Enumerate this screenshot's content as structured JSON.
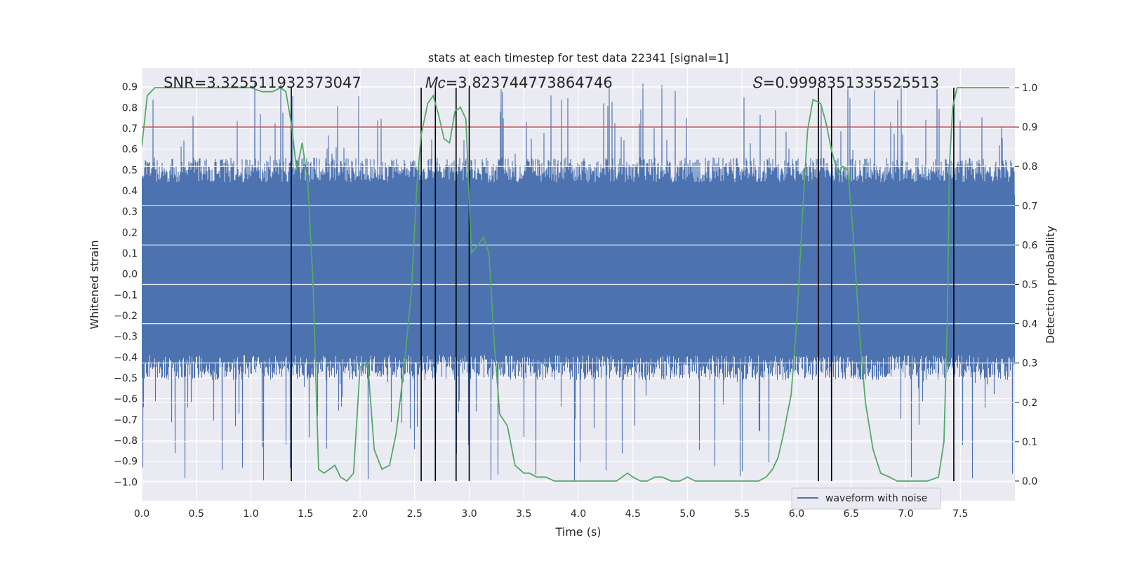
{
  "chart_data": {
    "type": "line",
    "title": "stats at each timestep for test data 22341 [signal=1]",
    "xlabel": "Time (s)",
    "ylabel_left": "Whitened strain",
    "ylabel_right": "Detection probability",
    "xlim": [
      0.0,
      8.0
    ],
    "ylim_left": [
      -1.09,
      0.99
    ],
    "ylim_right": [
      -0.05,
      1.05
    ],
    "xticks": [
      0.0,
      0.5,
      1.0,
      1.5,
      2.0,
      2.5,
      3.0,
      3.5,
      4.0,
      4.5,
      5.0,
      5.5,
      6.0,
      6.5,
      7.0,
      7.5
    ],
    "xtick_labels": [
      "0.0",
      "0.5",
      "1.0",
      "1.5",
      "2.0",
      "2.5",
      "3.0",
      "3.5",
      "4.0",
      "4.5",
      "5.0",
      "5.5",
      "6.0",
      "6.5",
      "7.0",
      "7.5"
    ],
    "yticks_left": [
      0.9,
      0.8,
      0.7,
      0.6,
      0.5,
      0.4,
      0.3,
      0.2,
      0.1,
      0.0,
      -0.1,
      -0.2,
      -0.3,
      -0.4,
      -0.5,
      -0.6,
      -0.7,
      -0.8,
      -0.9,
      -1.0
    ],
    "ytick_labels_left": [
      "0.9",
      "0.8",
      "0.7",
      "0.6",
      "0.5",
      "0.4",
      "0.3",
      "0.2",
      "0.1",
      "0.0",
      "−0.1",
      "−0.2",
      "−0.3",
      "−0.4",
      "−0.5",
      "−0.6",
      "−0.7",
      "−0.8",
      "−0.9",
      "−1.0"
    ],
    "yticks_right": [
      1.0,
      0.9,
      0.8,
      0.7,
      0.6,
      0.5,
      0.4,
      0.3,
      0.2,
      0.1,
      0.0
    ],
    "ytick_labels_right": [
      "1.0",
      "0.9",
      "0.8",
      "0.7",
      "0.6",
      "0.5",
      "0.4",
      "0.3",
      "0.2",
      "0.1",
      "0.0"
    ],
    "grid": true,
    "series": [
      {
        "name": "waveform with noise",
        "axis": "left",
        "kind": "noise",
        "color": "#4c72b0",
        "core_envelope": [
          -0.45,
          0.5
        ],
        "spike_range": [
          -1.0,
          0.92
        ]
      },
      {
        "name": "detection probability",
        "axis": "right",
        "color": "#55a868",
        "x": [
          0.0,
          0.05,
          0.12,
          0.2,
          0.3,
          0.5,
          0.7,
          0.9,
          1.0,
          1.1,
          1.2,
          1.27,
          1.32,
          1.37,
          1.42,
          1.47,
          1.52,
          1.57,
          1.62,
          1.67,
          1.72,
          1.77,
          1.82,
          1.88,
          1.94,
          2.0,
          2.07,
          2.13,
          2.2,
          2.27,
          2.33,
          2.4,
          2.47,
          2.52,
          2.56,
          2.62,
          2.67,
          2.72,
          2.77,
          2.82,
          2.87,
          2.92,
          2.97,
          3.02,
          3.08,
          3.13,
          3.18,
          3.23,
          3.28,
          3.35,
          3.42,
          3.5,
          3.55,
          3.62,
          3.7,
          3.78,
          3.87,
          3.95,
          4.05,
          4.2,
          4.35,
          4.45,
          4.5,
          4.57,
          4.63,
          4.7,
          4.77,
          4.85,
          4.93,
          5.0,
          5.07,
          5.15,
          5.25,
          5.35,
          5.45,
          5.55,
          5.65,
          5.72,
          5.78,
          5.83,
          5.88,
          5.95,
          6.0,
          6.05,
          6.1,
          6.15,
          6.22,
          6.27,
          6.32,
          6.38,
          6.42,
          6.47,
          6.52,
          6.57,
          6.63,
          6.7,
          6.77,
          6.85,
          6.92,
          7.0,
          7.1,
          7.2,
          7.3,
          7.35,
          7.38,
          7.4,
          7.43,
          7.47,
          7.5,
          7.57,
          7.65,
          7.75,
          7.85,
          7.95
        ],
        "values": [
          0.85,
          0.98,
          1.0,
          1.0,
          1.0,
          1.0,
          1.0,
          1.0,
          1.0,
          0.99,
          0.99,
          1.0,
          0.99,
          0.91,
          0.79,
          0.86,
          0.76,
          0.5,
          0.03,
          0.02,
          0.03,
          0.04,
          0.01,
          0.0,
          0.02,
          0.29,
          0.3,
          0.08,
          0.03,
          0.04,
          0.12,
          0.28,
          0.48,
          0.75,
          0.88,
          0.96,
          0.98,
          0.93,
          0.87,
          0.86,
          0.94,
          0.95,
          0.92,
          0.58,
          0.6,
          0.62,
          0.58,
          0.35,
          0.17,
          0.14,
          0.04,
          0.02,
          0.02,
          0.01,
          0.01,
          0.0,
          0.0,
          0.0,
          0.0,
          0.0,
          0.0,
          0.02,
          0.01,
          0.0,
          0.0,
          0.01,
          0.01,
          0.0,
          0.0,
          0.01,
          0.0,
          0.0,
          0.0,
          0.0,
          0.0,
          0.0,
          0.0,
          0.01,
          0.03,
          0.06,
          0.12,
          0.22,
          0.4,
          0.66,
          0.89,
          0.97,
          0.96,
          0.91,
          0.84,
          0.78,
          0.8,
          0.79,
          0.62,
          0.4,
          0.2,
          0.08,
          0.02,
          0.01,
          0.0,
          0.0,
          0.0,
          0.0,
          0.01,
          0.1,
          0.4,
          0.8,
          0.95,
          1.0,
          1.0,
          1.0,
          1.0,
          1.0,
          1.0,
          1.0
        ]
      }
    ],
    "threshold": {
      "axis": "right",
      "value": 0.9,
      "color": "#c44e52"
    },
    "vlines": [
      1.37,
      2.56,
      2.69,
      2.88,
      3.0,
      6.2,
      6.32,
      7.44
    ],
    "vline_range_right": [
      0.0,
      1.0
    ],
    "annotations": [
      {
        "text": "SNR=3.325511932373047",
        "x": 0.2,
        "y_right": 1.0
      },
      {
        "text": "𝑀𝑐=3.823744773864746",
        "x": 2.6,
        "y_right": 1.0
      },
      {
        "text": "𝑆=0.9998351335525513",
        "x": 5.6,
        "y_right": 1.0
      }
    ],
    "legend": {
      "position": "lower-right",
      "entries": [
        "waveform with noise"
      ]
    }
  },
  "colors": {
    "background": "#eaeaf2",
    "grid": "#ffffff",
    "vline": "#000000"
  }
}
